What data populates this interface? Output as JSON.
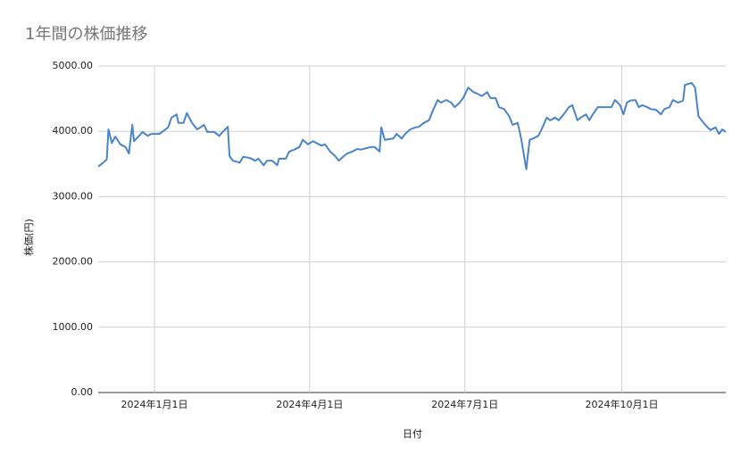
{
  "chart_data": {
    "type": "line",
    "title": "1年間の株価推移",
    "x_label": "日付",
    "y_label": "株価(円)",
    "x": [
      "2023-11-29",
      "2023-12-02",
      "2023-12-04",
      "2023-12-05",
      "2023-12-07",
      "2023-12-09",
      "2023-12-12",
      "2023-12-15",
      "2023-12-17",
      "2023-12-19",
      "2023-12-20",
      "2023-12-23",
      "2023-12-25",
      "2023-12-28",
      "2023-12-30",
      "2024-01-04",
      "2024-01-06",
      "2024-01-09",
      "2024-01-11",
      "2024-01-14",
      "2024-01-15",
      "2024-01-18",
      "2024-01-20",
      "2024-01-23",
      "2024-01-26",
      "2024-01-28",
      "2024-01-30",
      "2024-02-01",
      "2024-02-05",
      "2024-02-08",
      "2024-02-10",
      "2024-02-13",
      "2024-02-14",
      "2024-02-16",
      "2024-02-20",
      "2024-02-22",
      "2024-02-26",
      "2024-02-29",
      "2024-03-02",
      "2024-03-05",
      "2024-03-07",
      "2024-03-10",
      "2024-03-13",
      "2024-03-14",
      "2024-03-18",
      "2024-03-20",
      "2024-03-23",
      "2024-03-26",
      "2024-03-28",
      "2024-03-31",
      "2024-04-03",
      "2024-04-05",
      "2024-04-08",
      "2024-04-10",
      "2024-04-13",
      "2024-04-16",
      "2024-04-18",
      "2024-04-21",
      "2024-04-23",
      "2024-04-26",
      "2024-04-29",
      "2024-05-01",
      "2024-05-04",
      "2024-05-07",
      "2024-05-09",
      "2024-05-12",
      "2024-05-13",
      "2024-05-15",
      "2024-05-20",
      "2024-05-22",
      "2024-05-25",
      "2024-05-27",
      "2024-05-30",
      "2024-06-02",
      "2024-06-04",
      "2024-06-07",
      "2024-06-10",
      "2024-06-12",
      "2024-06-15",
      "2024-06-17",
      "2024-06-20",
      "2024-06-23",
      "2024-06-25",
      "2024-06-28",
      "2024-06-30",
      "2024-07-03",
      "2024-07-06",
      "2024-07-08",
      "2024-07-11",
      "2024-07-14",
      "2024-07-16",
      "2024-07-19",
      "2024-07-21",
      "2024-07-24",
      "2024-07-27",
      "2024-07-29",
      "2024-08-01",
      "2024-08-03",
      "2024-08-06",
      "2024-08-08",
      "2024-08-10",
      "2024-08-13",
      "2024-08-15",
      "2024-08-18",
      "2024-08-20",
      "2024-08-23",
      "2024-08-25",
      "2024-08-28",
      "2024-08-31",
      "2024-09-02",
      "2024-09-05",
      "2024-09-07",
      "2024-09-10",
      "2024-09-12",
      "2024-09-14",
      "2024-09-17",
      "2024-09-19",
      "2024-09-22",
      "2024-09-25",
      "2024-09-27",
      "2024-09-30",
      "2024-10-02",
      "2024-10-04",
      "2024-10-06",
      "2024-10-09",
      "2024-10-11",
      "2024-10-13",
      "2024-10-16",
      "2024-10-18",
      "2024-10-21",
      "2024-10-24",
      "2024-10-26",
      "2024-10-29",
      "2024-10-31",
      "2024-11-03",
      "2024-11-06",
      "2024-11-07",
      "2024-11-11",
      "2024-11-13",
      "2024-11-15",
      "2024-11-18",
      "2024-11-20",
      "2024-11-22",
      "2024-11-25",
      "2024-11-27",
      "2024-11-29",
      "2024-12-01"
    ],
    "series": [
      {
        "color": "#4a85c9",
        "values": [
          3460,
          3520,
          3570,
          4030,
          3820,
          3920,
          3800,
          3760,
          3660,
          4100,
          3850,
          3930,
          3990,
          3930,
          3960,
          3960,
          4000,
          4060,
          4210,
          4260,
          4130,
          4130,
          4280,
          4130,
          4030,
          4060,
          4100,
          3990,
          3990,
          3930,
          3990,
          4070,
          3620,
          3550,
          3520,
          3610,
          3590,
          3550,
          3580,
          3480,
          3550,
          3550,
          3480,
          3580,
          3580,
          3690,
          3720,
          3760,
          3870,
          3800,
          3850,
          3820,
          3780,
          3800,
          3690,
          3620,
          3550,
          3620,
          3660,
          3690,
          3730,
          3720,
          3740,
          3760,
          3760,
          3690,
          4060,
          3870,
          3890,
          3960,
          3890,
          3960,
          4030,
          4060,
          4070,
          4130,
          4170,
          4300,
          4480,
          4440,
          4480,
          4440,
          4370,
          4440,
          4510,
          4670,
          4600,
          4580,
          4540,
          4600,
          4510,
          4510,
          4370,
          4340,
          4230,
          4100,
          4130,
          3890,
          3420,
          3870,
          3890,
          3930,
          4030,
          4210,
          4170,
          4210,
          4170,
          4260,
          4370,
          4400,
          4170,
          4210,
          4260,
          4170,
          4260,
          4370,
          4370,
          4370,
          4370,
          4480,
          4400,
          4260,
          4440,
          4470,
          4480,
          4370,
          4400,
          4370,
          4340,
          4330,
          4260,
          4340,
          4370,
          4480,
          4440,
          4470,
          4710,
          4740,
          4670,
          4230,
          4130,
          4070,
          4020,
          4060,
          3960,
          4030,
          3990
        ]
      }
    ],
    "xlim": [
      "2023-11-29",
      "2024-12-01"
    ],
    "xticks": [
      {
        "value": "2024-01-01",
        "label": "2024年1月1日"
      },
      {
        "value": "2024-04-01",
        "label": "2024年4月1日"
      },
      {
        "value": "2024-07-01",
        "label": "2024年7月1日"
      },
      {
        "value": "2024-10-01",
        "label": "2024年10月1日"
      }
    ],
    "ylim": [
      0,
      5000
    ],
    "yticks": [
      {
        "value": 0,
        "label": "0.00"
      },
      {
        "value": 1000,
        "label": "1000.00"
      },
      {
        "value": 2000,
        "label": "2000.00"
      },
      {
        "value": 3000,
        "label": "3000.00"
      },
      {
        "value": 4000,
        "label": "4000.00"
      },
      {
        "value": 5000,
        "label": "5000.00"
      }
    ],
    "grid": true
  }
}
